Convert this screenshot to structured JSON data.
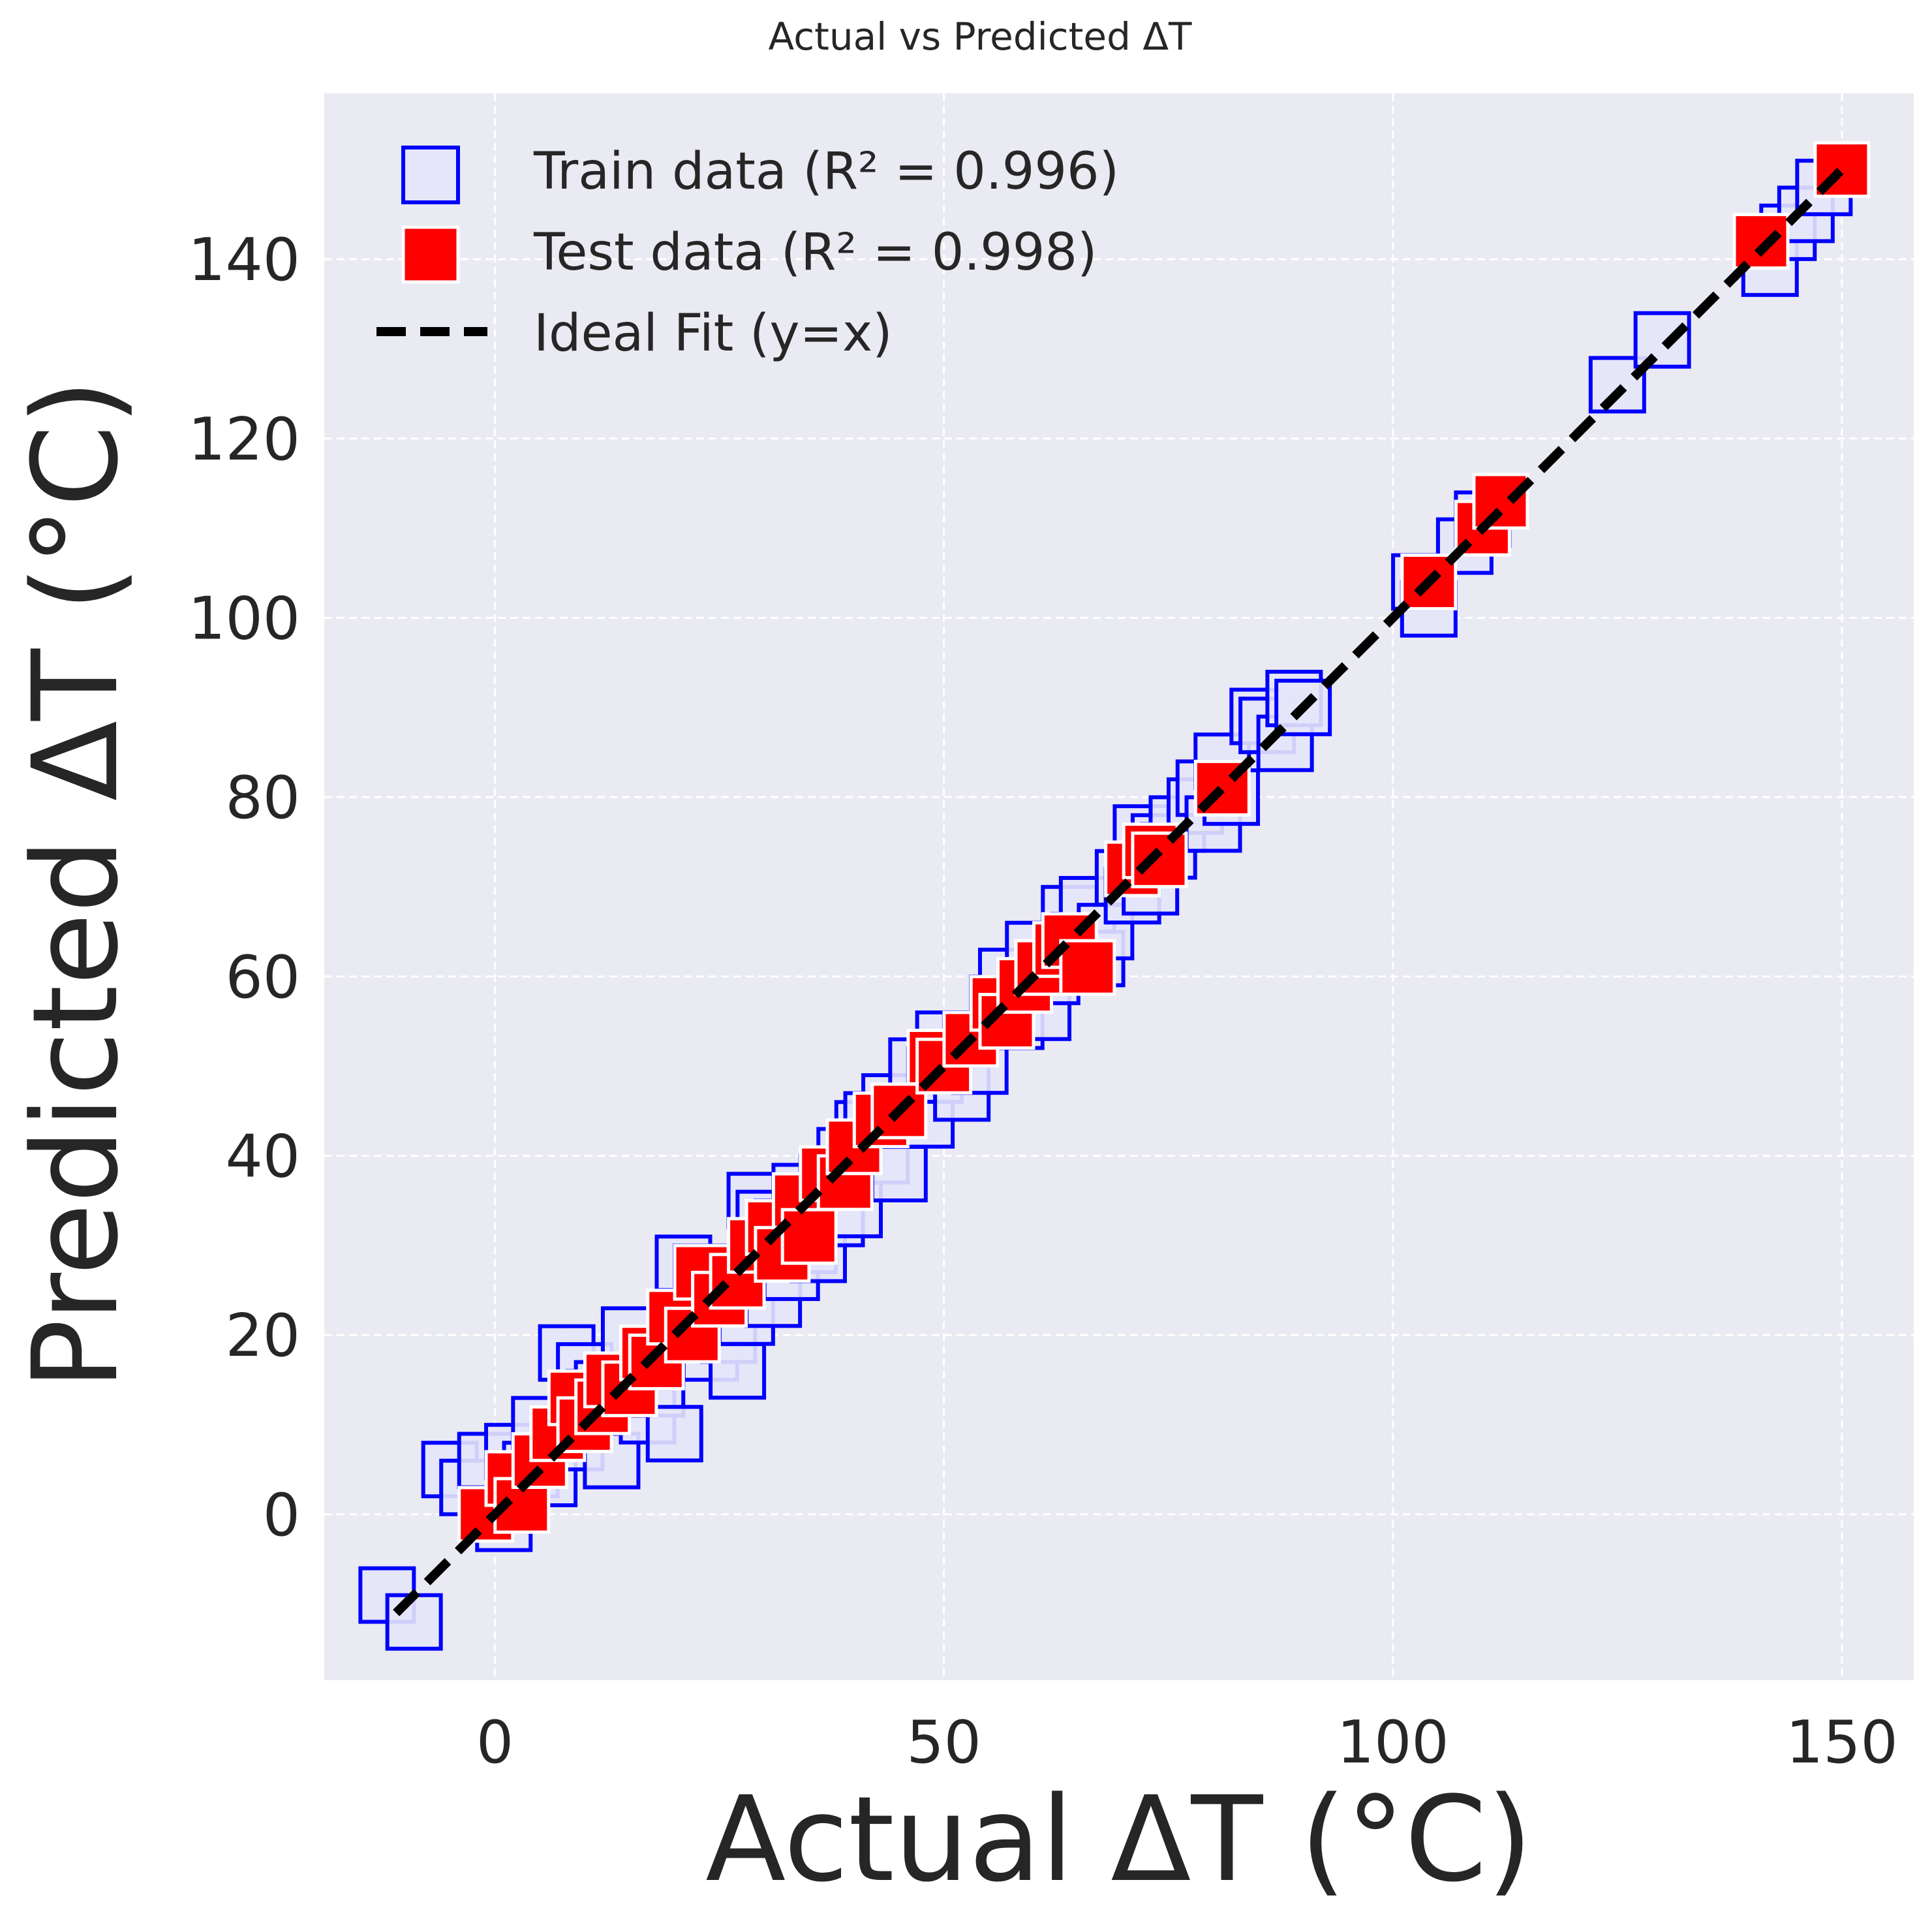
{
  "chart_data": {
    "type": "scatter",
    "title": "Actual vs Predicted ΔT",
    "xlabel": "Actual ΔT (°C)",
    "ylabel": "Predicted ΔT (°C)",
    "xlim": [
      -19,
      158
    ],
    "ylim": [
      -18.5,
      158.5
    ],
    "xticks": [
      0,
      50,
      100,
      150
    ],
    "yticks": [
      0,
      20,
      40,
      60,
      80,
      100,
      120,
      140
    ],
    "grid": true,
    "legend_position": "top-left",
    "colors": {
      "background": "#eaeaf2",
      "grid": "#ffffff",
      "train_edge": "#0000ff",
      "train_fill": "#e6e6fa",
      "test_fill": "#ff0000",
      "test_edge": "#ffffff",
      "ideal": "#000000"
    },
    "legend": [
      {
        "key": "train",
        "label": "Train data (R² = 0.996)"
      },
      {
        "key": "test",
        "label": "Test data (R² = 0.998)"
      },
      {
        "key": "ideal",
        "label": "Ideal Fit (y=x)"
      }
    ],
    "series": [
      {
        "name": "Train data (R² = 0.996)",
        "marker": "square-open",
        "points": [
          [
            -12,
            -9
          ],
          [
            -9,
            -12
          ],
          [
            -5,
            5
          ],
          [
            -3,
            3
          ],
          [
            -1,
            6
          ],
          [
            1,
            -1
          ],
          [
            2,
            7
          ],
          [
            4,
            5
          ],
          [
            5,
            10
          ],
          [
            6,
            4
          ],
          [
            8,
            18
          ],
          [
            9,
            8
          ],
          [
            10,
            16
          ],
          [
            11,
            13
          ],
          [
            12,
            14
          ],
          [
            13,
            6
          ],
          [
            15,
            20
          ],
          [
            17,
            11
          ],
          [
            18,
            14
          ],
          [
            20,
            9
          ],
          [
            21,
            28
          ],
          [
            22,
            22
          ],
          [
            23,
            27
          ],
          [
            24,
            18
          ],
          [
            25,
            25
          ],
          [
            26,
            20
          ],
          [
            27,
            16
          ],
          [
            28,
            22
          ],
          [
            29,
            35
          ],
          [
            30,
            33
          ],
          [
            31,
            24
          ],
          [
            32,
            32
          ],
          [
            33,
            27
          ],
          [
            34,
            36
          ],
          [
            35,
            30
          ],
          [
            36,
            29
          ],
          [
            37,
            37
          ],
          [
            38,
            33
          ],
          [
            39,
            40
          ],
          [
            40,
            34
          ],
          [
            41,
            43
          ],
          [
            42,
            44
          ],
          [
            43,
            40
          ],
          [
            44,
            46
          ],
          [
            45,
            38
          ],
          [
            47,
            50
          ],
          [
            48,
            44
          ],
          [
            49,
            49
          ],
          [
            50,
            53
          ],
          [
            52,
            47
          ],
          [
            53,
            53
          ],
          [
            54,
            50
          ],
          [
            56,
            57
          ],
          [
            57,
            60
          ],
          [
            58,
            55
          ],
          [
            60,
            63
          ],
          [
            61,
            56
          ],
          [
            62,
            60
          ],
          [
            64,
            67
          ],
          [
            65,
            64
          ],
          [
            66,
            68
          ],
          [
            67,
            62
          ],
          [
            68,
            65
          ],
          [
            70,
            71
          ],
          [
            71,
            69
          ],
          [
            72,
            76
          ],
          [
            73,
            70
          ],
          [
            74,
            75
          ],
          [
            75,
            74
          ],
          [
            76,
            77
          ],
          [
            78,
            79
          ],
          [
            79,
            81
          ],
          [
            80,
            77
          ],
          [
            81,
            84
          ],
          [
            82,
            80
          ],
          [
            85,
            89
          ],
          [
            86,
            88
          ],
          [
            88,
            86
          ],
          [
            89,
            91
          ],
          [
            90,
            90
          ],
          [
            103,
            104
          ],
          [
            104,
            101
          ],
          [
            108,
            108
          ],
          [
            110,
            111
          ],
          [
            125,
            126
          ],
          [
            130,
            131
          ],
          [
            142,
            139
          ],
          [
            144,
            143
          ],
          [
            146,
            145
          ],
          [
            148,
            148
          ]
        ]
      },
      {
        "name": "Test data (R² = 0.998)",
        "marker": "square-filled",
        "points": [
          [
            -1,
            0
          ],
          [
            2,
            4
          ],
          [
            3,
            1
          ],
          [
            5,
            6
          ],
          [
            7,
            9
          ],
          [
            9,
            13
          ],
          [
            10,
            10
          ],
          [
            12,
            12
          ],
          [
            13,
            15
          ],
          [
            15,
            14
          ],
          [
            17,
            18
          ],
          [
            18,
            17
          ],
          [
            20,
            22
          ],
          [
            22,
            20
          ],
          [
            23,
            27
          ],
          [
            25,
            24
          ],
          [
            27,
            26
          ],
          [
            29,
            30
          ],
          [
            31,
            32
          ],
          [
            32,
            29
          ],
          [
            34,
            35
          ],
          [
            35,
            31
          ],
          [
            37,
            38
          ],
          [
            39,
            37
          ],
          [
            40,
            41
          ],
          [
            43,
            44
          ],
          [
            45,
            45
          ],
          [
            49,
            51
          ],
          [
            50,
            50
          ],
          [
            53,
            53
          ],
          [
            56,
            57
          ],
          [
            57,
            55
          ],
          [
            59,
            59
          ],
          [
            61,
            61
          ],
          [
            63,
            63
          ],
          [
            64,
            64
          ],
          [
            66,
            61
          ],
          [
            71,
            72
          ],
          [
            73,
            74
          ],
          [
            74,
            73
          ],
          [
            81,
            81
          ],
          [
            104,
            104
          ],
          [
            110,
            110
          ],
          [
            112,
            113
          ],
          [
            141,
            142
          ],
          [
            150,
            150
          ]
        ]
      },
      {
        "name": "Ideal Fit (y=x)",
        "marker": "dashed-line",
        "points": [
          [
            -11,
            -11
          ],
          [
            150,
            150
          ]
        ]
      }
    ]
  }
}
